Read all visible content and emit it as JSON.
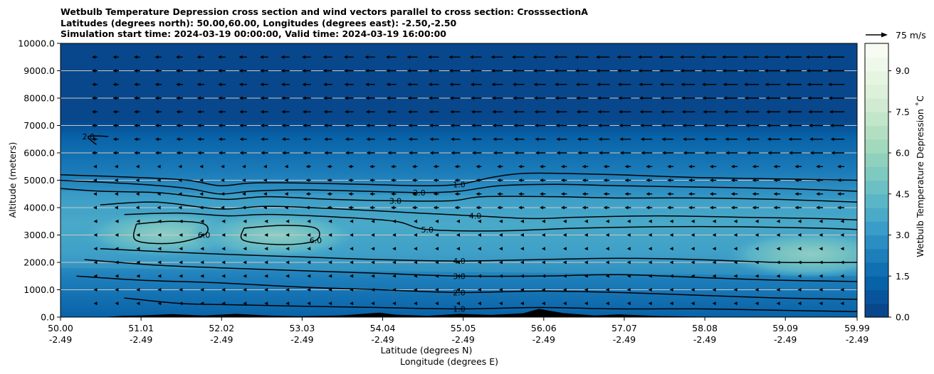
{
  "chart_data": {
    "type": "contour",
    "title_lines": [
      "Wetbulb Temperature Depression cross section and wind vectors parallel to cross section: CrosssectionA",
      "Latitudes (degrees north): 50.00,60.00, Longitudes (degrees east): -2.50,-2.50",
      "Simulation start time: 2024-03-19 00:00:00, Valid time: 2024-03-19 16:00:00"
    ],
    "ylabel": "Altitude (meters)",
    "xlabel_lines": [
      "Latitude (degrees N)",
      "Longitude (degrees E)"
    ],
    "ylim": [
      0,
      10000
    ],
    "yticks": [
      "0.0",
      "1000.0",
      "2000.0",
      "3000.0",
      "4000.0",
      "5000.0",
      "6000.0",
      "7000.0",
      "8000.0",
      "9000.0",
      "10000.0"
    ],
    "xlim": [
      50.0,
      59.99
    ],
    "xticks": [
      {
        "lat": "50.00",
        "lon": "-2.49"
      },
      {
        "lat": "51.01",
        "lon": "-2.49"
      },
      {
        "lat": "52.02",
        "lon": "-2.49"
      },
      {
        "lat": "53.03",
        "lon": "-2.49"
      },
      {
        "lat": "54.04",
        "lon": "-2.49"
      },
      {
        "lat": "55.05",
        "lon": "-2.49"
      },
      {
        "lat": "56.06",
        "lon": "-2.49"
      },
      {
        "lat": "57.07",
        "lon": "-2.49"
      },
      {
        "lat": "58.08",
        "lon": "-2.49"
      },
      {
        "lat": "59.09",
        "lon": "-2.49"
      },
      {
        "lat": "59.99",
        "lon": "-2.49"
      }
    ],
    "colorbar": {
      "label": "Wetbulb Temperature Depression $^\\circ$C",
      "label_display": "Wetbulb Temperature Depression ˚C",
      "min": 0,
      "max": 10,
      "ticks": [
        "0.0",
        "1.5",
        "3.0",
        "4.5",
        "6.0",
        "7.5",
        "9.0"
      ],
      "tick_values": [
        0,
        1.5,
        3,
        4.5,
        6,
        7.5,
        9
      ],
      "colors": [
        "#08478b",
        "#08549c",
        "#0862a8",
        "#1070b2",
        "#1d7eba",
        "#2b8ec2",
        "#3a9cc8",
        "#4aaac8",
        "#5ab6c6",
        "#6cc0c4",
        "#7ec9c0",
        "#90d1bd",
        "#a2d9bd",
        "#b2dfc2",
        "#c2e6c9",
        "#d0ebd1",
        "#dcf0da",
        "#e6f5e1",
        "#eff9eb",
        "#f7fcf3"
      ]
    },
    "quiver_key": {
      "label": "75 m/s"
    },
    "grid": "horizontal",
    "contour_labels": [
      "1.0",
      "2.0",
      "3.0",
      "4.0",
      "5.0",
      "6.0"
    ],
    "isolines": [
      {
        "label": "1.0",
        "points": [
          [
            50.0,
            5200
          ],
          [
            51.0,
            5100
          ],
          [
            51.6,
            5000
          ],
          [
            52.0,
            4800
          ],
          [
            52.4,
            4900
          ],
          [
            53.0,
            4900
          ],
          [
            53.8,
            4850
          ],
          [
            54.5,
            4800
          ],
          [
            55.0,
            4850
          ],
          [
            55.4,
            5100
          ],
          [
            55.8,
            5250
          ],
          [
            56.3,
            5250
          ],
          [
            57.0,
            5200
          ],
          [
            58.0,
            5100
          ],
          [
            59.0,
            5050
          ],
          [
            59.99,
            5000
          ]
        ]
      },
      {
        "label": "2.0",
        "points": [
          [
            50.0,
            5000
          ],
          [
            51.0,
            4850
          ],
          [
            51.6,
            4700
          ],
          [
            52.0,
            4500
          ],
          [
            52.4,
            4600
          ],
          [
            53.0,
            4650
          ],
          [
            53.8,
            4600
          ],
          [
            54.5,
            4550
          ],
          [
            55.0,
            4600
          ],
          [
            55.5,
            4800
          ],
          [
            56.2,
            4850
          ],
          [
            57.0,
            4800
          ],
          [
            58.0,
            4750
          ],
          [
            59.0,
            4700
          ],
          [
            59.99,
            4600
          ]
        ]
      },
      {
        "label": "3.0",
        "points": [
          [
            50.0,
            4700
          ],
          [
            50.5,
            4600
          ],
          [
            51.2,
            4550
          ],
          [
            51.7,
            4400
          ],
          [
            52.1,
            4300
          ],
          [
            52.6,
            4400
          ],
          [
            53.4,
            4300
          ],
          [
            54.2,
            4250
          ],
          [
            54.9,
            4250
          ],
          [
            55.3,
            4400
          ],
          [
            56.2,
            4400
          ],
          [
            57.0,
            4350
          ],
          [
            58.0,
            4350
          ],
          [
            59.0,
            4300
          ],
          [
            59.99,
            4200
          ]
        ]
      },
      {
        "label": "4.0",
        "points": [
          [
            50.5,
            4100
          ],
          [
            51.2,
            4200
          ],
          [
            52.0,
            3950
          ],
          [
            52.6,
            4050
          ],
          [
            53.5,
            3950
          ],
          [
            54.5,
            3800
          ],
          [
            55.2,
            3700
          ],
          [
            55.9,
            3600
          ],
          [
            56.5,
            3650
          ],
          [
            57.5,
            3700
          ],
          [
            58.5,
            3650
          ],
          [
            59.5,
            3600
          ],
          [
            59.99,
            3550
          ]
        ]
      },
      {
        "label": "5.0",
        "points": [
          [
            50.8,
            3750
          ],
          [
            51.5,
            3800
          ],
          [
            52.1,
            3700
          ],
          [
            52.6,
            3750
          ],
          [
            53.5,
            3650
          ],
          [
            54.2,
            3500
          ],
          [
            54.6,
            3200
          ],
          [
            55.5,
            3150
          ],
          [
            56.5,
            3250
          ],
          [
            57.5,
            3300
          ],
          [
            58.5,
            3300
          ],
          [
            59.5,
            3250
          ],
          [
            59.99,
            3200
          ]
        ]
      },
      {
        "label": "6.0",
        "points": [
          [
            50.95,
            3400
          ],
          [
            51.4,
            3500
          ],
          [
            51.8,
            3400
          ],
          [
            51.8,
            3000
          ],
          [
            51.4,
            2700
          ],
          [
            50.95,
            2800
          ],
          [
            50.95,
            3400
          ]
        ]
      },
      {
        "label": "6.0",
        "points": [
          [
            52.3,
            3250
          ],
          [
            52.8,
            3350
          ],
          [
            53.2,
            3250
          ],
          [
            53.2,
            2800
          ],
          [
            52.8,
            2650
          ],
          [
            52.3,
            2800
          ],
          [
            52.3,
            3250
          ]
        ]
      },
      {
        "label": "4.0",
        "points": [
          [
            50.5,
            2500
          ],
          [
            51.2,
            2400
          ],
          [
            52.0,
            2300
          ],
          [
            53.0,
            2200
          ],
          [
            54.0,
            2100
          ],
          [
            55.0,
            2050
          ],
          [
            56.0,
            2100
          ],
          [
            57.0,
            2150
          ],
          [
            58.0,
            2100
          ],
          [
            59.0,
            2000
          ],
          [
            59.99,
            2000
          ]
        ]
      },
      {
        "label": "3.0",
        "points": [
          [
            50.3,
            2100
          ],
          [
            51.2,
            1900
          ],
          [
            52.0,
            1800
          ],
          [
            53.0,
            1700
          ],
          [
            54.0,
            1600
          ],
          [
            55.0,
            1500
          ],
          [
            56.0,
            1500
          ],
          [
            57.0,
            1550
          ],
          [
            58.0,
            1450
          ],
          [
            59.0,
            1350
          ],
          [
            59.99,
            1300
          ]
        ]
      },
      {
        "label": "2.0",
        "points": [
          [
            50.2,
            1500
          ],
          [
            51.0,
            1350
          ],
          [
            52.0,
            1250
          ],
          [
            53.0,
            1100
          ],
          [
            54.0,
            1000
          ],
          [
            55.0,
            900
          ],
          [
            56.0,
            950
          ],
          [
            57.0,
            900
          ],
          [
            58.0,
            800
          ],
          [
            59.0,
            700
          ],
          [
            59.99,
            650
          ]
        ]
      },
      {
        "label": "1.0",
        "points": [
          [
            50.8,
            700
          ],
          [
            51.5,
            500
          ],
          [
            52.2,
            450
          ],
          [
            53.0,
            400
          ],
          [
            54.0,
            350
          ],
          [
            55.0,
            300
          ],
          [
            56.0,
            350
          ],
          [
            57.0,
            300
          ],
          [
            58.0,
            300
          ],
          [
            59.0,
            250
          ],
          [
            59.99,
            200
          ]
        ]
      },
      {
        "label": "2.0",
        "points": [
          [
            50.45,
            6300
          ],
          [
            50.35,
            6600
          ],
          [
            50.6,
            6600
          ]
        ]
      }
    ],
    "dry_blob_peaks": [
      [
        51.3,
        3050,
        6.4
      ],
      [
        52.7,
        3000,
        6.3
      ],
      [
        59.4,
        2300,
        6.2
      ]
    ],
    "terrain_meters": [
      [
        50.0,
        0
      ],
      [
        50.5,
        0
      ],
      [
        50.8,
        50
      ],
      [
        51.0,
        60
      ],
      [
        51.4,
        110
      ],
      [
        51.8,
        60
      ],
      [
        52.2,
        120
      ],
      [
        52.6,
        60
      ],
      [
        53.0,
        30
      ],
      [
        53.5,
        60
      ],
      [
        54.0,
        160
      ],
      [
        54.2,
        90
      ],
      [
        54.6,
        50
      ],
      [
        55.0,
        120
      ],
      [
        55.4,
        80
      ],
      [
        55.8,
        140
      ],
      [
        56.0,
        300
      ],
      [
        56.3,
        150
      ],
      [
        56.7,
        60
      ],
      [
        57.0,
        100
      ],
      [
        57.5,
        40
      ],
      [
        58.0,
        20
      ],
      [
        59.0,
        0
      ],
      [
        59.99,
        0
      ]
    ],
    "wind_vectors": {
      "rows_meters": [
        9500,
        9000,
        8500,
        8000,
        7500,
        7000,
        6500,
        6000,
        5500,
        5000,
        4500,
        4000,
        3500,
        3000,
        2500,
        2000,
        1500,
        1000,
        500
      ],
      "direction": "westward"
    }
  }
}
